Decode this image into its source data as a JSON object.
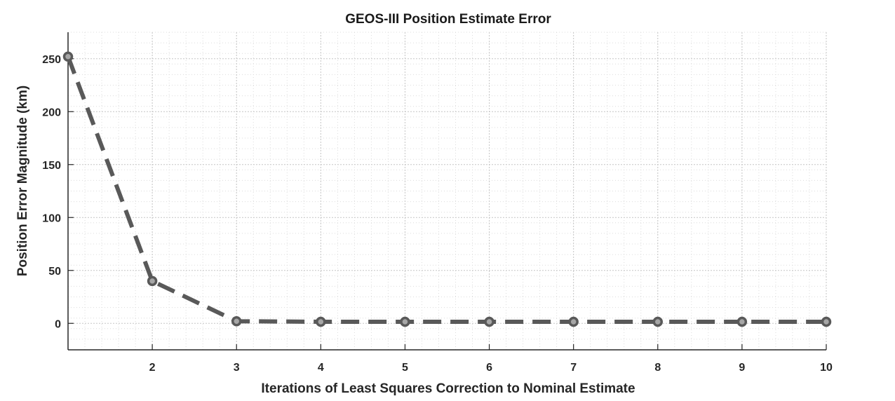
{
  "chart_data": {
    "type": "line",
    "title": "GEOS-III Position Estimate Error",
    "xlabel": "Iterations of Least Squares Correction to Nominal Estimate",
    "ylabel": "Position Error Magnitude (km)",
    "xlim": [
      1,
      10
    ],
    "ylim": [
      -25,
      275
    ],
    "xticks": [
      2,
      3,
      4,
      5,
      6,
      7,
      8,
      9,
      10
    ],
    "yticks": [
      0,
      50,
      100,
      150,
      200,
      250
    ],
    "grid": true,
    "minor_grid": true,
    "series": [
      {
        "x": [
          1,
          2,
          3,
          4,
          5,
          6,
          7,
          8,
          9,
          10
        ],
        "y": [
          252,
          40,
          2,
          1.5,
          1.5,
          1.5,
          1.5,
          1.5,
          1.5,
          1.5
        ],
        "color": "#595959",
        "line_style": "dashed",
        "marker": "circle"
      }
    ]
  }
}
